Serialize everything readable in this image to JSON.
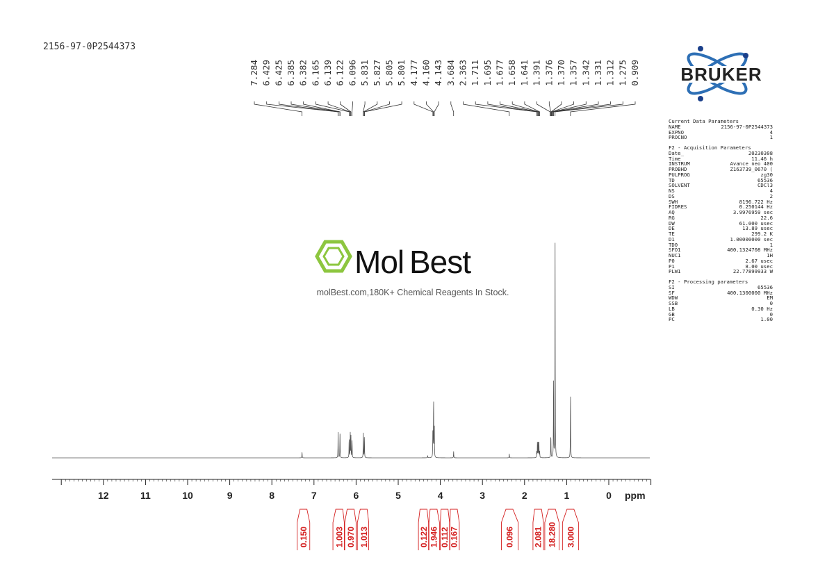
{
  "sample_id": "2156-97-0P2544373",
  "peak_labels": [
    "7.284",
    "6.429",
    "6.425",
    "6.385",
    "6.382",
    "6.165",
    "6.139",
    "6.122",
    "6.096",
    "5.831",
    "5.827",
    "5.805",
    "5.801",
    "4.177",
    "4.160",
    "4.143",
    "3.684",
    "2.363",
    "1.711",
    "1.695",
    "1.677",
    "1.658",
    "1.641",
    "1.391",
    "1.376",
    "1.370",
    "1.357",
    "1.342",
    "1.331",
    "1.312",
    "1.275",
    "0.909"
  ],
  "logo": {
    "text": "BRUKER",
    "colors": {
      "ring": "#2d6fb5",
      "dot": "#1a3f8a",
      "text": "#222222"
    }
  },
  "watermark": {
    "brand_part1": "Mol",
    "brand_part2": "Best",
    "tagline": "molBest.com,180K+ Chemical Reagents In Stock.",
    "color": "#8dc63f",
    "text_color": "#555555"
  },
  "parameters": [
    {
      "header": "Current Data Parameters",
      "rows": [
        [
          "NAME",
          "2156-97-0P2544373"
        ],
        [
          "EXPNO",
          "4"
        ],
        [
          "PROCNO",
          "1"
        ]
      ]
    },
    {
      "header": "F2 - Acquisition Parameters",
      "rows": [
        [
          "Date_",
          "20230308"
        ],
        [
          "Time",
          "11.46 h"
        ],
        [
          "INSTRUM",
          "Avance neo 400"
        ],
        [
          "PROBHD",
          "Z163739_0670 ("
        ],
        [
          "PULPROG",
          "zg30"
        ],
        [
          "TD",
          "65536"
        ],
        [
          "SOLVENT",
          "CDCl3"
        ],
        [
          "NS",
          "4"
        ],
        [
          "DS",
          "2"
        ],
        [
          "SWH",
          "8196.722 Hz"
        ],
        [
          "FIDRES",
          "0.250144 Hz"
        ],
        [
          "AQ",
          "3.9976959 sec"
        ],
        [
          "RG",
          "22.6"
        ],
        [
          "DW",
          "61.000 usec"
        ],
        [
          "DE",
          "13.89 usec"
        ],
        [
          "TE",
          "299.2 K"
        ],
        [
          "D1",
          "1.00000000 sec"
        ],
        [
          "TD0",
          "1"
        ],
        [
          "SFO1",
          "400.1324708 MHz"
        ],
        [
          "NUC1",
          "1H"
        ],
        [
          "P0",
          "2.67 usec"
        ],
        [
          "P1",
          "8.00 usec"
        ],
        [
          "PLW1",
          "22.77899933 W"
        ]
      ]
    },
    {
      "header": "F2 - Processing parameters",
      "rows": [
        [
          "SI",
          "65536"
        ],
        [
          "SF",
          "400.1300000 MHz"
        ],
        [
          "WDW",
          "EM"
        ],
        [
          "SSB",
          "0"
        ],
        [
          "LB",
          "0.30 Hz"
        ],
        [
          "GB",
          "0"
        ],
        [
          "PC",
          "1.00"
        ]
      ]
    }
  ],
  "chart_data": {
    "type": "line",
    "xlabel": "ppm",
    "xlim": [
      13,
      -1
    ],
    "x_reversed": true,
    "x_ticks": [
      "12",
      "11",
      "10",
      "9",
      "8",
      "7",
      "6",
      "5",
      "4",
      "3",
      "2",
      "1",
      "0"
    ],
    "peaks": [
      {
        "ppm": 7.284,
        "height": 0.03
      },
      {
        "ppm": 6.427,
        "height": 0.12
      },
      {
        "ppm": 6.383,
        "height": 0.12
      },
      {
        "ppm": 6.165,
        "height": 0.1
      },
      {
        "ppm": 6.139,
        "height": 0.115
      },
      {
        "ppm": 6.122,
        "height": 0.1
      },
      {
        "ppm": 6.096,
        "height": 0.09
      },
      {
        "ppm": 5.829,
        "height": 0.115
      },
      {
        "ppm": 5.803,
        "height": 0.11
      },
      {
        "ppm": 4.177,
        "height": 0.15
      },
      {
        "ppm": 4.16,
        "height": 0.3
      },
      {
        "ppm": 4.143,
        "height": 0.15
      },
      {
        "ppm": 3.684,
        "height": 0.03
      },
      {
        "ppm": 2.363,
        "height": 0.02
      },
      {
        "ppm": 4.3,
        "height": 0.012
      },
      {
        "ppm": 1.711,
        "height": 0.03
      },
      {
        "ppm": 1.695,
        "height": 0.07
      },
      {
        "ppm": 1.677,
        "height": 0.09
      },
      {
        "ppm": 1.658,
        "height": 0.07
      },
      {
        "ppm": 1.641,
        "height": 0.03
      },
      {
        "ppm": 1.376,
        "height": 0.12
      },
      {
        "ppm": 1.312,
        "height": 0.35
      },
      {
        "ppm": 1.275,
        "height": 1.0
      },
      {
        "ppm": 0.909,
        "height": 0.33
      }
    ],
    "integrals": [
      {
        "value": "0.150",
        "center": 7.25,
        "from": 7.4,
        "to": 7.1
      },
      {
        "value": "1.003",
        "center": 6.4,
        "from": 6.55,
        "to": 6.28
      },
      {
        "value": "0.970",
        "center": 6.13,
        "from": 6.27,
        "to": 6.0
      },
      {
        "value": "1.013",
        "center": 5.82,
        "from": 5.97,
        "to": 5.7
      },
      {
        "value": "0.122",
        "center": 4.4,
        "from": 4.52,
        "to": 4.28
      },
      {
        "value": "1.946",
        "center": 4.16,
        "from": 4.27,
        "to": 4.02
      },
      {
        "value": "0.112",
        "center": 3.9,
        "from": 4.0,
        "to": 3.78
      },
      {
        "value": "0.167",
        "center": 3.68,
        "from": 3.77,
        "to": 3.55
      },
      {
        "value": "0.096",
        "center": 2.36,
        "from": 2.55,
        "to": 2.15
      },
      {
        "value": "2.081",
        "center": 1.68,
        "from": 1.8,
        "to": 1.55
      },
      {
        "value": "18.280",
        "center": 1.35,
        "from": 1.52,
        "to": 1.18
      },
      {
        "value": "3.000",
        "center": 0.91,
        "from": 1.1,
        "to": 0.72
      }
    ],
    "colors": {
      "trace": "#555555",
      "integral": "#d42020",
      "axis": "#222222"
    }
  }
}
